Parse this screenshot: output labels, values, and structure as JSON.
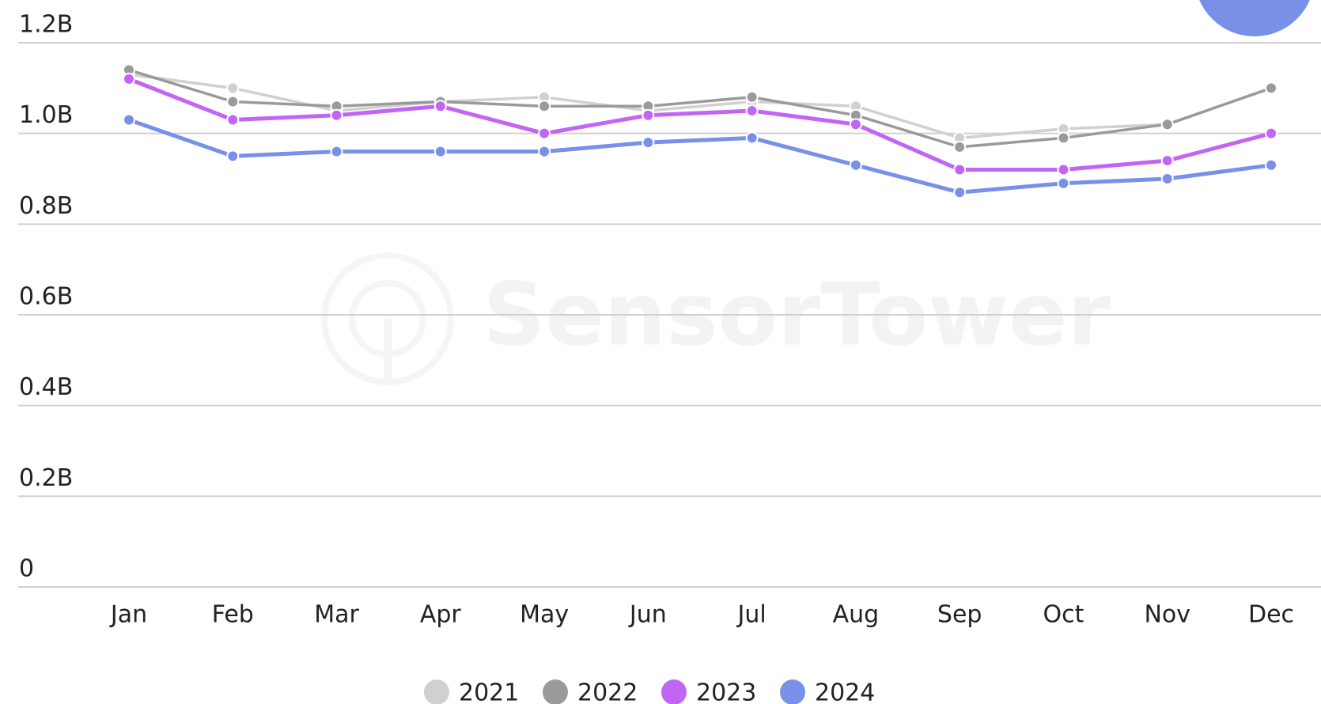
{
  "chart_data": {
    "type": "line",
    "watermark": "SensorTower",
    "categories": [
      "Jan",
      "Feb",
      "Mar",
      "Apr",
      "May",
      "Jun",
      "Jul",
      "Aug",
      "Sep",
      "Oct",
      "Nov",
      "Dec"
    ],
    "series": [
      {
        "name": "2021",
        "color": "#d0d0d0",
        "values": [
          1.13,
          1.1,
          1.05,
          1.07,
          1.08,
          1.05,
          1.07,
          1.06,
          0.99,
          1.01,
          1.02,
          1.1
        ]
      },
      {
        "name": "2022",
        "color": "#9a9a9a",
        "values": [
          1.14,
          1.07,
          1.06,
          1.07,
          1.06,
          1.06,
          1.08,
          1.04,
          0.97,
          0.99,
          1.02,
          1.1
        ]
      },
      {
        "name": "2023",
        "color": "#c165f5",
        "values": [
          1.12,
          1.03,
          1.04,
          1.06,
          1.0,
          1.04,
          1.05,
          1.02,
          0.92,
          0.92,
          0.94,
          1.0
        ]
      },
      {
        "name": "2024",
        "color": "#7890e8",
        "values": [
          1.03,
          0.95,
          0.96,
          0.96,
          0.96,
          0.98,
          0.99,
          0.93,
          0.87,
          0.89,
          0.9,
          0.93
        ]
      }
    ],
    "ylim": [
      0,
      1.2
    ],
    "yticks": [
      0,
      {
        "value": 0.2,
        "label": "0.2B"
      },
      {
        "value": 0.4,
        "label": "0.4B"
      },
      {
        "value": 0.6,
        "label": "0.6B"
      },
      {
        "value": 0.8,
        "label": "0.8B"
      },
      {
        "value": 1.0,
        "label": "1.0B"
      },
      {
        "value": 1.2,
        "label": "1.2B"
      }
    ],
    "grid": true,
    "legend": "bottom"
  }
}
